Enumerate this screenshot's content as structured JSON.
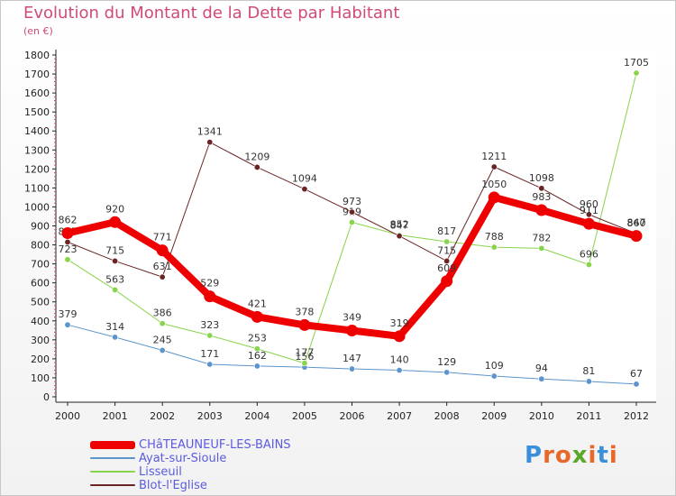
{
  "title": "Evolution du Montant de la Dette par Habitant",
  "unit": "(en €)",
  "logo": "Proxiti",
  "logo_colors": [
    "#3a8fd8",
    "#e8682a",
    "#e8682a",
    "#5aa82a",
    "#e8682a",
    "#3a8fd8",
    "#e8682a"
  ],
  "chart_data": {
    "type": "line",
    "x": [
      "2000",
      "2001",
      "2002",
      "2003",
      "2004",
      "2005",
      "2006",
      "2007",
      "2008",
      "2009",
      "2010",
      "2011",
      "2012"
    ],
    "yticks": [
      0,
      100,
      200,
      300,
      400,
      500,
      600,
      700,
      800,
      900,
      1000,
      1100,
      1200,
      1300,
      1400,
      1500,
      1600,
      1700,
      1800
    ],
    "ylim": [
      0,
      1800
    ],
    "grid": false,
    "legend_placement": "bottom-left",
    "series": [
      {
        "name": "Ayat-sur-Sioule",
        "color": "#5b95cc",
        "values": [
          379,
          314,
          245,
          171,
          162,
          156,
          147,
          140,
          129,
          109,
          94,
          81,
          67
        ]
      },
      {
        "name": "Lisseuil",
        "color": "#88d44a",
        "values": [
          723,
          563,
          386,
          323,
          253,
          177,
          919,
          852,
          817,
          788,
          782,
          696,
          1705
        ]
      },
      {
        "name": "Blot-l'Eglise",
        "color": "#6b2424",
        "values": [
          815,
          715,
          631,
          1341,
          1209,
          1094,
          973,
          847,
          715,
          1211,
          1098,
          960,
          860
        ]
      },
      {
        "name": "CHâTEAUNEUF-LES-BAINS",
        "color": "#ee0000",
        "values": [
          862,
          920,
          771,
          529,
          421,
          378,
          349,
          319,
          609,
          1050,
          983,
          911,
          847
        ]
      }
    ]
  }
}
